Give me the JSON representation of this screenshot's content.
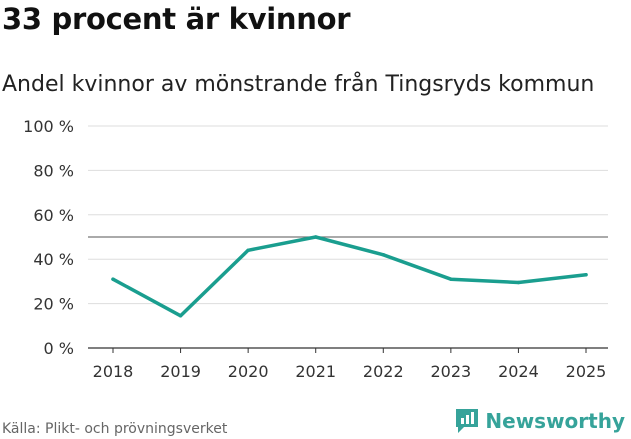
{
  "header": {
    "title": "33 procent är kvinnor",
    "subtitle": "Andel kvinnor av mönstrande från Tingsryds kommun"
  },
  "chart_data": {
    "type": "line",
    "title": "33 procent är kvinnor",
    "subtitle": "Andel kvinnor av mönstrande från Tingsryds kommun",
    "xlabel": "",
    "ylabel": "",
    "categories": [
      "2018",
      "2019",
      "2020",
      "2021",
      "2022",
      "2023",
      "2024",
      "2025"
    ],
    "series": [
      {
        "name": "Andel kvinnor",
        "values": [
          31,
          14.5,
          44,
          50,
          42,
          31,
          29.5,
          33
        ]
      }
    ],
    "ylim": [
      0,
      100
    ],
    "yticks": [
      0,
      20,
      40,
      60,
      80,
      100
    ],
    "ytick_labels": [
      "0 %",
      "20 %",
      "40 %",
      "60 %",
      "80 %",
      "100 %"
    ],
    "reference_line": 50,
    "grid": true,
    "colors": {
      "line": "#1a9e8f",
      "grid": "#dddddd",
      "reference": "#777777",
      "axis": "#333333"
    }
  },
  "footer": {
    "source": "Källa: Plikt- och prövningsverket",
    "brand": "Newsworthy",
    "brand_icon": "newsworthy-logo-icon",
    "brand_color": "#36a39a"
  }
}
